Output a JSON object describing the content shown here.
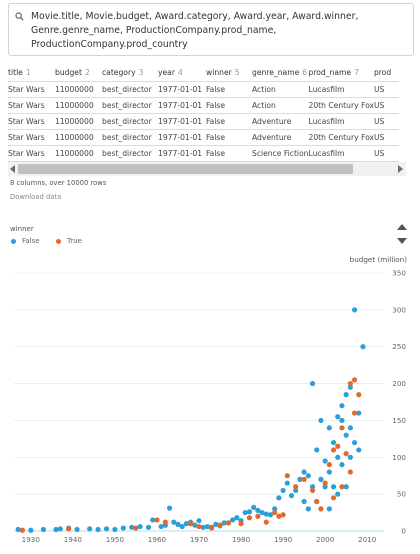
{
  "query": {
    "icon": "search-icon",
    "text": "Movie.title, Movie.budget, Award.category, Award.year, Award.winner, Genre.genre_name, ProductionCompany.prod_name, ProductionCompany.prod_country"
  },
  "table": {
    "columns": [
      {
        "name": "title",
        "index": "1"
      },
      {
        "name": "budget",
        "index": "2"
      },
      {
        "name": "category",
        "index": "3"
      },
      {
        "name": "year",
        "index": "4"
      },
      {
        "name": "winner",
        "index": "5"
      },
      {
        "name": "genre_name",
        "index": "6"
      },
      {
        "name": "prod_name",
        "index": "7"
      },
      {
        "name": "prod",
        "index": ""
      }
    ],
    "rows": [
      [
        "Star Wars",
        "11000000",
        "best_director",
        "1977-01-01",
        "False",
        "Action",
        "Lucasfilm",
        "US"
      ],
      [
        "Star Wars",
        "11000000",
        "best_director",
        "1977-01-01",
        "False",
        "Action",
        "20th Century Fox",
        "US"
      ],
      [
        "Star Wars",
        "11000000",
        "best_director",
        "1977-01-01",
        "False",
        "Adventure",
        "Lucasfilm",
        "US"
      ],
      [
        "Star Wars",
        "11000000",
        "best_director",
        "1977-01-01",
        "False",
        "Adventure",
        "20th Century Fox",
        "US"
      ],
      [
        "Star Wars",
        "11000000",
        "best_director",
        "1977-01-01",
        "False",
        "Science Fiction",
        "Lucasfilm",
        "US"
      ]
    ]
  },
  "row_info": "8 columns, over 10000 rows",
  "download_label": "Download data",
  "colors": {
    "false": "#2b9fd8",
    "true": "#e06a2a"
  },
  "chart_data": {
    "type": "scatter",
    "legend_title": "winner",
    "legend_position": "top-left",
    "ylabel": "budget (million)",
    "xlabel": "",
    "xlim": [
      1926,
      2014
    ],
    "ylim": [
      0,
      350
    ],
    "x_ticks": [
      1930,
      1940,
      1950,
      1960,
      1970,
      1980,
      1990,
      2000,
      2010
    ],
    "y_ticks": [
      0,
      50,
      100,
      150,
      200,
      250,
      300,
      350
    ],
    "grid": "horizontal",
    "series": [
      {
        "name": "False",
        "points": [
          [
            1927,
            2
          ],
          [
            1930,
            1
          ],
          [
            1933,
            2
          ],
          [
            1936,
            2
          ],
          [
            1937,
            3
          ],
          [
            1939,
            4
          ],
          [
            1941,
            2
          ],
          [
            1944,
            3
          ],
          [
            1946,
            2
          ],
          [
            1948,
            3
          ],
          [
            1950,
            2
          ],
          [
            1952,
            4
          ],
          [
            1954,
            5
          ],
          [
            1956,
            6
          ],
          [
            1958,
            5
          ],
          [
            1959,
            15
          ],
          [
            1961,
            6
          ],
          [
            1962,
            8
          ],
          [
            1963,
            31
          ],
          [
            1964,
            12
          ],
          [
            1965,
            9
          ],
          [
            1966,
            6
          ],
          [
            1967,
            10
          ],
          [
            1968,
            12
          ],
          [
            1969,
            8
          ],
          [
            1970,
            14
          ],
          [
            1971,
            5
          ],
          [
            1972,
            6
          ],
          [
            1973,
            5
          ],
          [
            1974,
            9
          ],
          [
            1975,
            7
          ],
          [
            1976,
            11
          ],
          [
            1977,
            11
          ],
          [
            1978,
            15
          ],
          [
            1979,
            18
          ],
          [
            1980,
            14
          ],
          [
            1981,
            25
          ],
          [
            1982,
            26
          ],
          [
            1983,
            32
          ],
          [
            1984,
            28
          ],
          [
            1985,
            25
          ],
          [
            1986,
            23
          ],
          [
            1987,
            22
          ],
          [
            1988,
            30
          ],
          [
            1989,
            45
          ],
          [
            1990,
            55
          ],
          [
            1991,
            65
          ],
          [
            1992,
            48
          ],
          [
            1993,
            55
          ],
          [
            1994,
            70
          ],
          [
            1995,
            80
          ],
          [
            1996,
            75
          ],
          [
            1997,
            200
          ],
          [
            1998,
            110
          ],
          [
            1999,
            150
          ],
          [
            2000,
            95
          ],
          [
            2001,
            140
          ],
          [
            2002,
            120
          ],
          [
            2003,
            155
          ],
          [
            2004,
            170
          ],
          [
            2005,
            185
          ],
          [
            2006,
            195
          ],
          [
            2007,
            300
          ],
          [
            2008,
            160
          ],
          [
            2009,
            250
          ],
          [
            1995,
            40
          ],
          [
            1997,
            60
          ],
          [
            1999,
            70
          ],
          [
            2001,
            80
          ],
          [
            2003,
            100
          ],
          [
            2004,
            150
          ],
          [
            2005,
            130
          ],
          [
            2006,
            140
          ],
          [
            2007,
            120
          ],
          [
            1998,
            40
          ],
          [
            2000,
            60
          ],
          [
            2002,
            60
          ],
          [
            2004,
            90
          ],
          [
            2006,
            100
          ],
          [
            2008,
            110
          ],
          [
            1996,
            30
          ],
          [
            2001,
            30
          ],
          [
            2003,
            50
          ],
          [
            2005,
            60
          ]
        ]
      },
      {
        "name": "True",
        "points": [
          [
            1928,
            1
          ],
          [
            1939,
            3
          ],
          [
            1955,
            4
          ],
          [
            1960,
            15
          ],
          [
            1962,
            12
          ],
          [
            1968,
            10
          ],
          [
            1970,
            6
          ],
          [
            1973,
            4
          ],
          [
            1975,
            8
          ],
          [
            1977,
            11
          ],
          [
            1980,
            10
          ],
          [
            1982,
            18
          ],
          [
            1984,
            20
          ],
          [
            1986,
            12
          ],
          [
            1988,
            25
          ],
          [
            1989,
            20
          ],
          [
            1990,
            22
          ],
          [
            1991,
            75
          ],
          [
            1993,
            60
          ],
          [
            1995,
            70
          ],
          [
            1997,
            55
          ],
          [
            1998,
            40
          ],
          [
            2000,
            65
          ],
          [
            2001,
            90
          ],
          [
            2002,
            110
          ],
          [
            2003,
            115
          ],
          [
            2004,
            140
          ],
          [
            2005,
            105
          ],
          [
            2006,
            200
          ],
          [
            2007,
            205
          ],
          [
            2008,
            185
          ],
          [
            1999,
            30
          ],
          [
            2002,
            45
          ],
          [
            2004,
            60
          ],
          [
            2006,
            80
          ],
          [
            2007,
            160
          ]
        ]
      }
    ]
  }
}
